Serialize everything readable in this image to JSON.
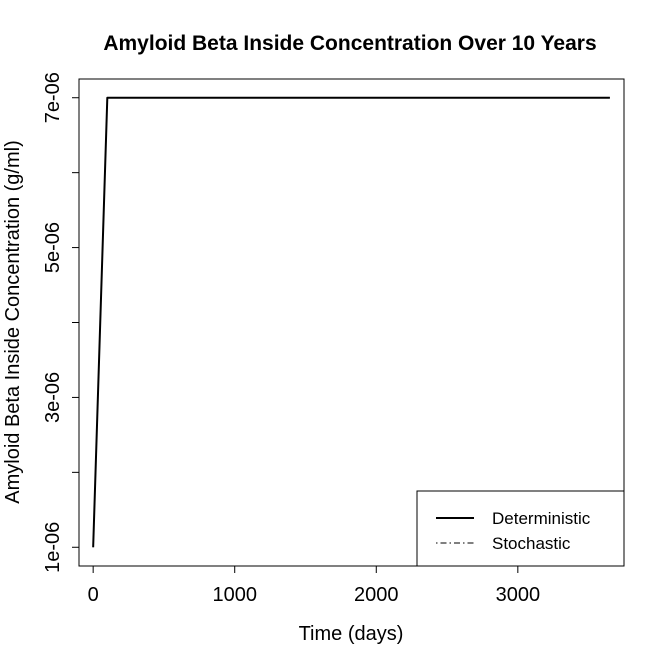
{
  "chart_data": {
    "type": "line",
    "title": "Amyloid Beta Inside Concentration Over 10 Years",
    "xlabel": "Time (days)",
    "ylabel": "Amyloid Beta Inside Concentration (g/ml)",
    "xlim": [
      -100,
      3750
    ],
    "ylim": [
      7.5e-07,
      7.25e-06
    ],
    "x_ticks": [
      0,
      1000,
      2000,
      3000
    ],
    "x_tick_labels": [
      "0",
      "1000",
      "2000",
      "3000"
    ],
    "y_ticks": [
      1e-06,
      2e-06,
      3e-06,
      4e-06,
      5e-06,
      6e-06,
      7e-06
    ],
    "y_tick_labels": [
      "1e-06",
      "",
      "3e-06",
      "",
      "5e-06",
      "",
      "7e-06"
    ],
    "grid": false,
    "legend_position": "bottom-right",
    "series": [
      {
        "name": "Deterministic",
        "color": "#000000",
        "line_style": "solid",
        "x": [
          0,
          100,
          3650
        ],
        "y": [
          1e-06,
          7e-06,
          7e-06
        ]
      },
      {
        "name": "Stochastic",
        "color": "#000000",
        "line_style": "dotdash",
        "x": [
          0,
          100,
          3650
        ],
        "y": [
          1e-06,
          7e-06,
          7e-06
        ]
      }
    ]
  }
}
